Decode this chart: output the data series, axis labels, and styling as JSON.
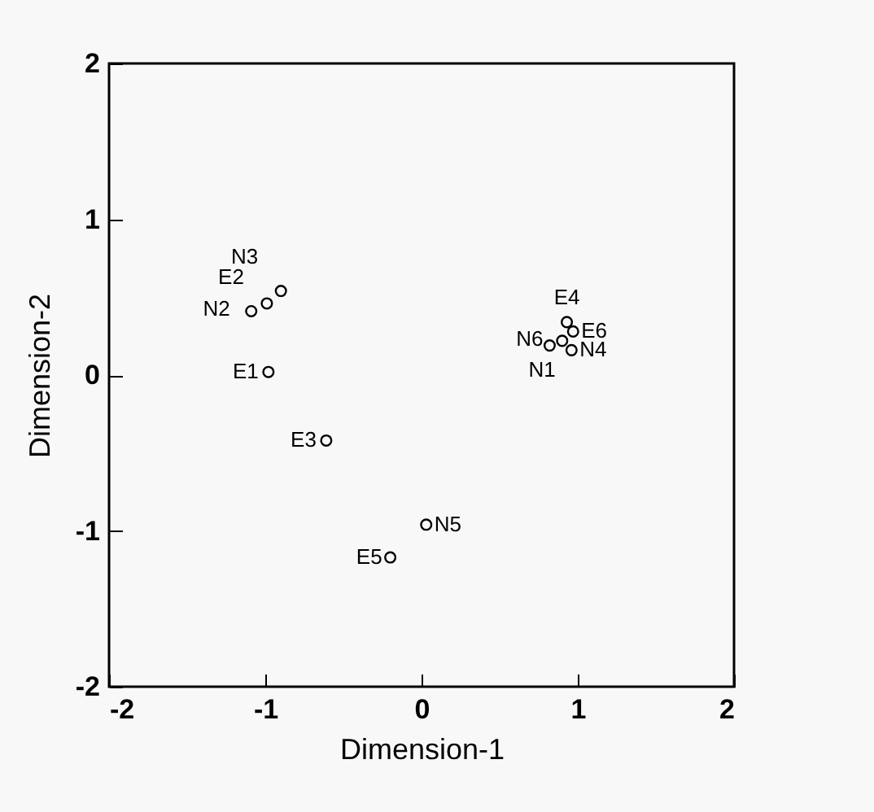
{
  "chart_data": {
    "type": "scatter",
    "xlabel": "Dimension-1",
    "ylabel": "Dimension-2",
    "x": [
      -1.09,
      -0.99,
      -0.9,
      -0.98,
      -0.61,
      0.03,
      -0.2,
      0.93,
      0.97,
      0.82,
      0.9,
      0.96
    ],
    "series": [
      {
        "color": "#000000",
        "values": [
          0.41,
          0.46,
          0.54,
          0.02,
          -0.42,
          -0.96,
          -1.17,
          0.34,
          0.28,
          0.19,
          0.22,
          0.16
        ]
      }
    ],
    "marker": "circle",
    "grid": false,
    "xlim": [
      -2,
      2
    ],
    "ylim": [
      -2,
      2
    ],
    "xticks": [
      -2,
      -1,
      0,
      1,
      2
    ],
    "yticks": [
      -2,
      -1,
      0,
      1,
      2
    ],
    "annotations": [
      {
        "text": "N2",
        "x": -1.09,
        "y": 0.41
      },
      {
        "text": "E2",
        "x": -0.99,
        "y": 0.46
      },
      {
        "text": "N3",
        "x": -0.9,
        "y": 0.54
      },
      {
        "text": "E1",
        "x": -0.98,
        "y": 0.02
      },
      {
        "text": "E3",
        "x": -0.61,
        "y": -0.42
      },
      {
        "text": "N5",
        "x": 0.03,
        "y": -0.96
      },
      {
        "text": "E5",
        "x": -0.2,
        "y": -1.17
      },
      {
        "text": "E4",
        "x": 0.93,
        "y": 0.34
      },
      {
        "text": "E6",
        "x": 0.97,
        "y": 0.28
      },
      {
        "text": "N6",
        "x": 0.82,
        "y": 0.19
      },
      {
        "text": "N1",
        "x": 0.9,
        "y": 0.22
      },
      {
        "text": "N4",
        "x": 0.96,
        "y": 0.16
      }
    ]
  }
}
